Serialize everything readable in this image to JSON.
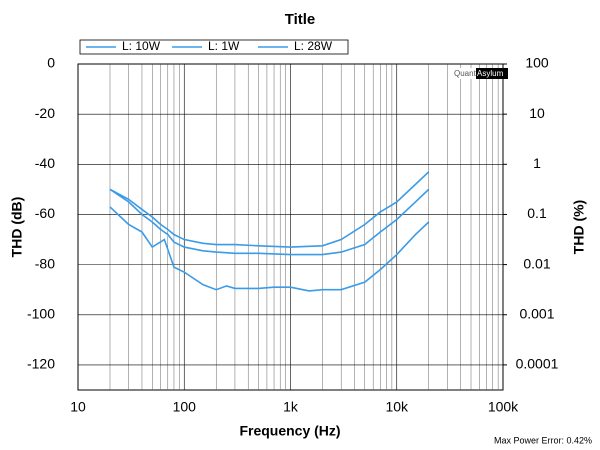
{
  "chart_data": {
    "type": "line",
    "title": "Title",
    "x_label": "Frequency (Hz)",
    "y_label": "THD (dB)",
    "y2_label": "THD (%)",
    "footer_note": "Max Power Error: 0.42%",
    "logo": [
      "Quant",
      "Asylum"
    ],
    "xscale": "log",
    "y2scale": "log",
    "grid": true,
    "legend": "top",
    "xlim": [
      10,
      100000
    ],
    "xticks": [
      10,
      100,
      {
        "value": 1000,
        "label": "1k"
      },
      {
        "value": 10000,
        "label": "10k"
      },
      {
        "value": 100000,
        "label": "100k"
      }
    ],
    "ylim": [
      -130,
      0
    ],
    "yticks": [
      0,
      -20,
      -40,
      -60,
      -80,
      -100,
      -120
    ],
    "y2lim": [
      3.16e-05,
      100
    ],
    "y2ticks": [
      100,
      10,
      1,
      0.1,
      0.01,
      0.001,
      0.0001
    ],
    "series": [
      {
        "name": "L: 10W",
        "color": "#3a9be8",
        "x": [
          20,
          30,
          40,
          50,
          65,
          80,
          100,
          150,
          200,
          250,
          300,
          500,
          700,
          1000,
          1500,
          2000,
          3000,
          5000,
          7000,
          10000,
          15000,
          20000
        ],
        "values": [
          -57,
          -64,
          -67,
          -73,
          -70,
          -81,
          -83,
          -88,
          -90,
          -88.5,
          -89.5,
          -89.5,
          -89,
          -89,
          -90.5,
          -90,
          -90,
          -87,
          -82,
          -76,
          -68,
          -63
        ]
      },
      {
        "name": "L: 1W",
        "color": "#3a9be8",
        "x": [
          20,
          30,
          40,
          50,
          60,
          70,
          80,
          100,
          150,
          200,
          300,
          500,
          1000,
          2000,
          3000,
          5000,
          7000,
          10000,
          15000,
          20000
        ],
        "values": [
          -50,
          -55,
          -60,
          -63,
          -66,
          -68,
          -71,
          -73,
          -74.5,
          -75,
          -75.5,
          -75.5,
          -76,
          -76,
          -75,
          -72,
          -67,
          -62,
          -55,
          -50
        ]
      },
      {
        "name": "L: 28W",
        "color": "#3a9be8",
        "x": [
          20,
          30,
          40,
          50,
          60,
          70,
          80,
          100,
          150,
          200,
          300,
          500,
          1000,
          2000,
          3000,
          5000,
          7000,
          10000,
          15000,
          20000
        ],
        "values": [
          -50,
          -54,
          -58,
          -61,
          -64,
          -66,
          -68,
          -70,
          -71.5,
          -72,
          -72,
          -72.5,
          -73,
          -72.5,
          -70,
          -64,
          -59,
          -55,
          -48,
          -43
        ]
      }
    ]
  }
}
